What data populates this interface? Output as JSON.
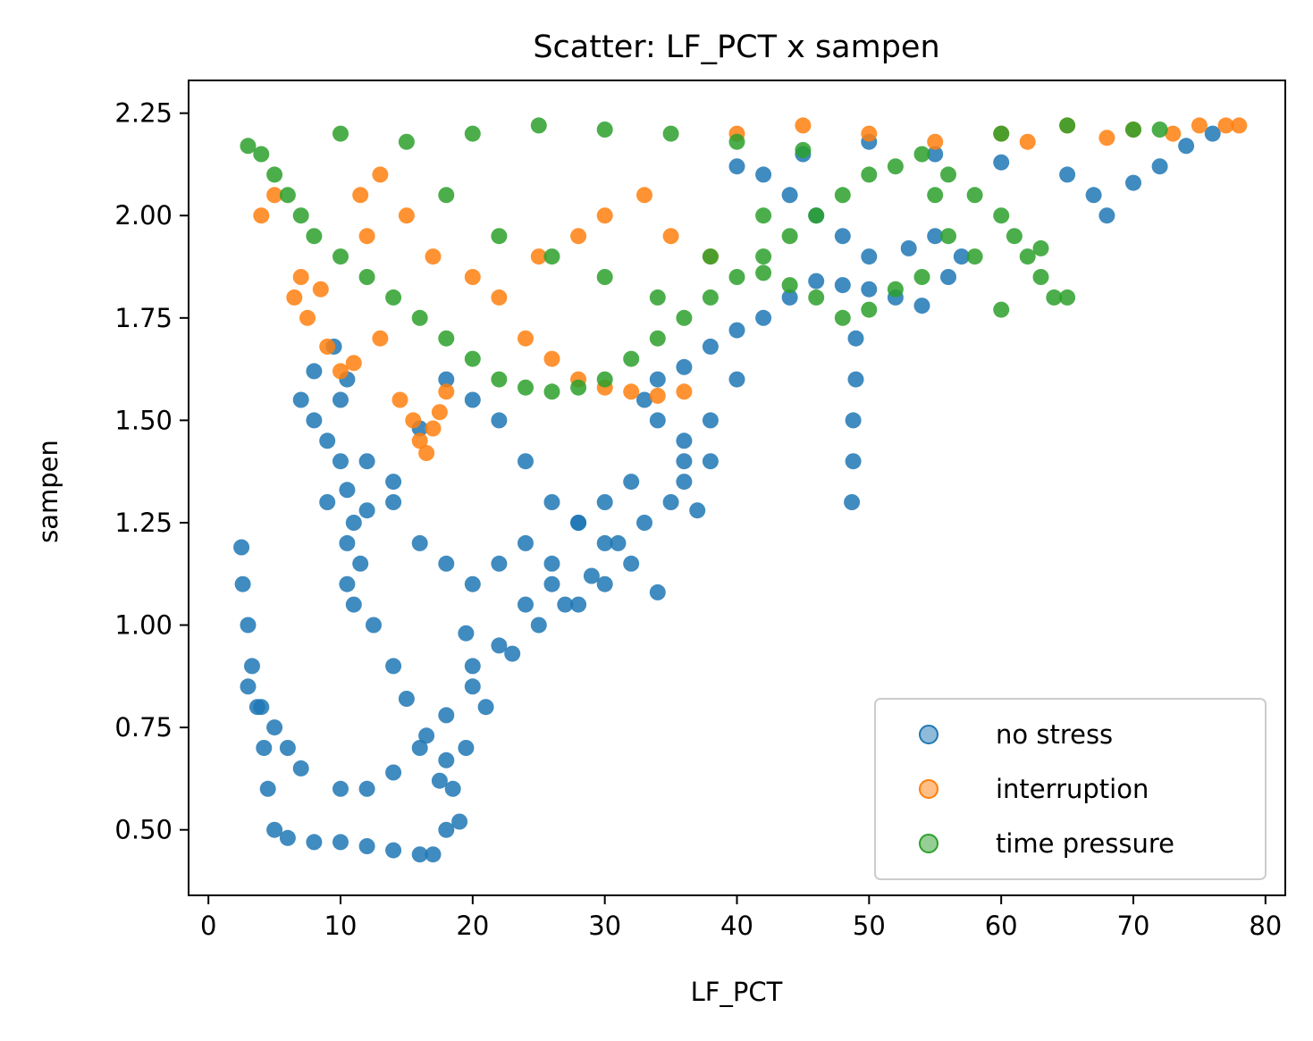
{
  "chart_data": {
    "type": "scatter",
    "title": "Scatter: LF_PCT x sampen",
    "xlabel": "LF_PCT",
    "ylabel": "sampen",
    "xlim": [
      -1.5,
      81.5
    ],
    "ylim": [
      0.34,
      2.33
    ],
    "xticks": [
      "0",
      "10",
      "20",
      "30",
      "40",
      "50",
      "60",
      "70",
      "80"
    ],
    "yticks": [
      "0.50",
      "0.75",
      "1.00",
      "1.25",
      "1.50",
      "1.75",
      "2.00",
      "2.25"
    ],
    "grid": false,
    "legend_position": "lower right",
    "series": [
      {
        "name": "no stress",
        "color": "#1f77b4",
        "points": [
          [
            2.5,
            1.19
          ],
          [
            2.6,
            1.1
          ],
          [
            3.0,
            1.0
          ],
          [
            3.3,
            0.9
          ],
          [
            3.7,
            0.8
          ],
          [
            4.2,
            0.7
          ],
          [
            4.5,
            0.6
          ],
          [
            5.0,
            0.5
          ],
          [
            6.0,
            0.48
          ],
          [
            8.0,
            0.47
          ],
          [
            10.0,
            0.47
          ],
          [
            12.0,
            0.46
          ],
          [
            14.0,
            0.45
          ],
          [
            16.0,
            0.44
          ],
          [
            17.0,
            0.44
          ],
          [
            18.0,
            0.5
          ],
          [
            19.0,
            0.52
          ],
          [
            17.5,
            0.62
          ],
          [
            18.0,
            0.67
          ],
          [
            16.5,
            0.73
          ],
          [
            15.0,
            0.82
          ],
          [
            14.0,
            0.9
          ],
          [
            12.5,
            1.0
          ],
          [
            11.0,
            1.05
          ],
          [
            10.5,
            1.1
          ],
          [
            11.5,
            1.15
          ],
          [
            10.5,
            1.2
          ],
          [
            11.0,
            1.25
          ],
          [
            10.5,
            1.33
          ],
          [
            10.0,
            1.4
          ],
          [
            9.0,
            1.45
          ],
          [
            10.0,
            1.55
          ],
          [
            10.5,
            1.6
          ],
          [
            9.5,
            1.68
          ],
          [
            8.0,
            1.62
          ],
          [
            7.0,
            1.55
          ],
          [
            8.0,
            1.5
          ],
          [
            12.0,
            1.4
          ],
          [
            14.0,
            1.3
          ],
          [
            16.0,
            1.2
          ],
          [
            18.0,
            1.15
          ],
          [
            20.0,
            1.1
          ],
          [
            22.0,
            1.15
          ],
          [
            24.0,
            1.2
          ],
          [
            26.0,
            1.1
          ],
          [
            28.0,
            1.05
          ],
          [
            30.0,
            1.1
          ],
          [
            32.0,
            1.15
          ],
          [
            34.0,
            1.08
          ],
          [
            30.0,
            1.2
          ],
          [
            28.0,
            1.25
          ],
          [
            26.0,
            1.3
          ],
          [
            24.0,
            1.4
          ],
          [
            22.0,
            1.5
          ],
          [
            20.0,
            1.55
          ],
          [
            18.0,
            1.6
          ],
          [
            16.0,
            1.48
          ],
          [
            14.0,
            1.35
          ],
          [
            12.0,
            1.28
          ],
          [
            9.0,
            1.3
          ],
          [
            19.5,
            0.98
          ],
          [
            20.0,
            0.9
          ],
          [
            21.0,
            0.8
          ],
          [
            19.5,
            0.7
          ],
          [
            18.5,
            0.6
          ],
          [
            23.0,
            0.93
          ],
          [
            25.0,
            1.0
          ],
          [
            27.0,
            1.05
          ],
          [
            29.0,
            1.12
          ],
          [
            31.0,
            1.2
          ],
          [
            33.0,
            1.25
          ],
          [
            35.0,
            1.3
          ],
          [
            36.0,
            1.35
          ],
          [
            37.0,
            1.28
          ],
          [
            38.0,
            1.4
          ],
          [
            36.0,
            1.45
          ],
          [
            34.0,
            1.5
          ],
          [
            33.0,
            1.55
          ],
          [
            34.0,
            1.6
          ],
          [
            36.0,
            1.63
          ],
          [
            38.0,
            1.68
          ],
          [
            40.0,
            1.72
          ],
          [
            42.0,
            1.75
          ],
          [
            44.0,
            1.8
          ],
          [
            46.0,
            1.84
          ],
          [
            48.0,
            1.83
          ],
          [
            50.0,
            1.82
          ],
          [
            52.0,
            1.8
          ],
          [
            54.0,
            1.78
          ],
          [
            56.0,
            1.85
          ],
          [
            57.0,
            1.9
          ],
          [
            55.0,
            1.95
          ],
          [
            53.0,
            1.92
          ],
          [
            50.0,
            1.9
          ],
          [
            48.0,
            1.95
          ],
          [
            46.0,
            2.0
          ],
          [
            44.0,
            2.05
          ],
          [
            42.0,
            2.1
          ],
          [
            40.0,
            2.12
          ],
          [
            45.0,
            2.15
          ],
          [
            50.0,
            2.18
          ],
          [
            55.0,
            2.15
          ],
          [
            60.0,
            2.13
          ],
          [
            65.0,
            2.1
          ],
          [
            67.0,
            2.05
          ],
          [
            68.0,
            2.0
          ],
          [
            70.0,
            2.08
          ],
          [
            72.0,
            2.12
          ],
          [
            74.0,
            2.17
          ],
          [
            76.0,
            2.2
          ],
          [
            49.0,
            1.7
          ],
          [
            49.0,
            1.6
          ],
          [
            48.8,
            1.5
          ],
          [
            48.8,
            1.4
          ],
          [
            48.7,
            1.3
          ],
          [
            40.0,
            1.6
          ],
          [
            38.0,
            1.5
          ],
          [
            36.0,
            1.4
          ],
          [
            32.0,
            1.35
          ],
          [
            30.0,
            1.3
          ],
          [
            28.0,
            1.25
          ],
          [
            26.0,
            1.15
          ],
          [
            24.0,
            1.05
          ],
          [
            22.0,
            0.95
          ],
          [
            20.0,
            0.85
          ],
          [
            18.0,
            0.78
          ],
          [
            16.0,
            0.7
          ],
          [
            14.0,
            0.64
          ],
          [
            12.0,
            0.6
          ],
          [
            10.0,
            0.6
          ],
          [
            7.0,
            0.65
          ],
          [
            6.0,
            0.7
          ],
          [
            5.0,
            0.75
          ],
          [
            4.0,
            0.8
          ],
          [
            3.0,
            0.85
          ]
        ]
      },
      {
        "name": "interruption",
        "color": "#ff7f0e",
        "points": [
          [
            4.0,
            2.0
          ],
          [
            5.0,
            2.05
          ],
          [
            6.5,
            1.8
          ],
          [
            7.0,
            1.85
          ],
          [
            7.5,
            1.75
          ],
          [
            8.5,
            1.82
          ],
          [
            9.0,
            1.68
          ],
          [
            10.0,
            1.62
          ],
          [
            11.0,
            1.64
          ],
          [
            13.0,
            1.7
          ],
          [
            14.5,
            1.55
          ],
          [
            15.5,
            1.5
          ],
          [
            16.0,
            1.45
          ],
          [
            16.5,
            1.42
          ],
          [
            17.0,
            1.48
          ],
          [
            17.5,
            1.52
          ],
          [
            18.0,
            1.57
          ],
          [
            12.0,
            1.95
          ],
          [
            11.5,
            2.05
          ],
          [
            13.0,
            2.1
          ],
          [
            15.0,
            2.0
          ],
          [
            17.0,
            1.9
          ],
          [
            20.0,
            1.85
          ],
          [
            22.0,
            1.8
          ],
          [
            24.0,
            1.7
          ],
          [
            26.0,
            1.65
          ],
          [
            28.0,
            1.6
          ],
          [
            30.0,
            1.58
          ],
          [
            32.0,
            1.57
          ],
          [
            34.0,
            1.56
          ],
          [
            36.0,
            1.57
          ],
          [
            25.0,
            1.9
          ],
          [
            28.0,
            1.95
          ],
          [
            30.0,
            2.0
          ],
          [
            33.0,
            2.05
          ],
          [
            35.0,
            1.95
          ],
          [
            38.0,
            1.9
          ],
          [
            40.0,
            2.2
          ],
          [
            45.0,
            2.22
          ],
          [
            50.0,
            2.2
          ],
          [
            55.0,
            2.18
          ],
          [
            60.0,
            2.2
          ],
          [
            65.0,
            2.22
          ],
          [
            70.0,
            2.21
          ],
          [
            73.0,
            2.2
          ],
          [
            75.0,
            2.22
          ],
          [
            77.0,
            2.22
          ],
          [
            78.0,
            2.22
          ],
          [
            68.0,
            2.19
          ],
          [
            62.0,
            2.18
          ]
        ]
      },
      {
        "name": "time pressure",
        "color": "#2ca02c",
        "points": [
          [
            3.0,
            2.17
          ],
          [
            4.0,
            2.15
          ],
          [
            5.0,
            2.1
          ],
          [
            6.0,
            2.05
          ],
          [
            7.0,
            2.0
          ],
          [
            8.0,
            1.95
          ],
          [
            10.0,
            1.9
          ],
          [
            12.0,
            1.85
          ],
          [
            14.0,
            1.8
          ],
          [
            16.0,
            1.75
          ],
          [
            18.0,
            1.7
          ],
          [
            20.0,
            1.65
          ],
          [
            22.0,
            1.6
          ],
          [
            24.0,
            1.58
          ],
          [
            26.0,
            1.57
          ],
          [
            28.0,
            1.58
          ],
          [
            30.0,
            1.6
          ],
          [
            32.0,
            1.65
          ],
          [
            34.0,
            1.7
          ],
          [
            36.0,
            1.75
          ],
          [
            38.0,
            1.8
          ],
          [
            40.0,
            1.85
          ],
          [
            42.0,
            1.9
          ],
          [
            44.0,
            1.95
          ],
          [
            46.0,
            2.0
          ],
          [
            48.0,
            2.05
          ],
          [
            50.0,
            2.1
          ],
          [
            52.0,
            2.12
          ],
          [
            54.0,
            2.15
          ],
          [
            56.0,
            2.1
          ],
          [
            58.0,
            2.05
          ],
          [
            60.0,
            2.0
          ],
          [
            62.0,
            1.9
          ],
          [
            63.0,
            1.85
          ],
          [
            64.0,
            1.8
          ],
          [
            65.0,
            1.8
          ],
          [
            60.0,
            1.77
          ],
          [
            58.0,
            1.9
          ],
          [
            56.0,
            1.95
          ],
          [
            54.0,
            1.85
          ],
          [
            52.0,
            1.82
          ],
          [
            50.0,
            1.77
          ],
          [
            48.0,
            1.75
          ],
          [
            46.0,
            1.8
          ],
          [
            44.0,
            1.83
          ],
          [
            42.0,
            1.86
          ],
          [
            20.0,
            2.2
          ],
          [
            25.0,
            2.22
          ],
          [
            30.0,
            2.21
          ],
          [
            35.0,
            2.2
          ],
          [
            40.0,
            2.18
          ],
          [
            45.0,
            2.16
          ],
          [
            60.0,
            2.2
          ],
          [
            65.0,
            2.22
          ],
          [
            70.0,
            2.21
          ],
          [
            72.0,
            2.21
          ],
          [
            10.0,
            2.2
          ],
          [
            15.0,
            2.18
          ],
          [
            18.0,
            2.05
          ],
          [
            22.0,
            1.95
          ],
          [
            26.0,
            1.9
          ],
          [
            30.0,
            1.85
          ],
          [
            34.0,
            1.8
          ],
          [
            38.0,
            1.9
          ],
          [
            42.0,
            2.0
          ],
          [
            55.0,
            2.05
          ],
          [
            61.0,
            1.95
          ],
          [
            63.0,
            1.92
          ]
        ]
      }
    ]
  }
}
